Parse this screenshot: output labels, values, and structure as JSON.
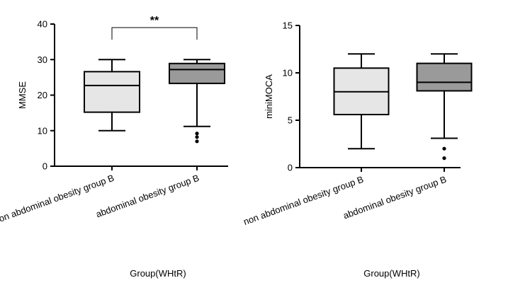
{
  "chart_data": [
    {
      "type": "box",
      "ylabel": "MMSE",
      "xlabel": "Group(WHtR)",
      "ylim": [
        0,
        40
      ],
      "yticks": [
        0,
        10,
        20,
        30,
        40
      ],
      "categories": [
        "non abdominal obesity group B",
        "abdominal obesity group B"
      ],
      "boxes": [
        {
          "min": 10,
          "q1": 15.2,
          "median": 22.7,
          "q3": 26.6,
          "max": 30,
          "outliers": [],
          "color": "#e6e6e6"
        },
        {
          "min": 11.2,
          "q1": 23.3,
          "median": 27.2,
          "q3": 28.9,
          "max": 30,
          "outliers": [
            9.2,
            8.2,
            7.0
          ],
          "color": "#9a9a9a"
        }
      ],
      "annotation": {
        "text": "**",
        "between": [
          0,
          1
        ],
        "y": 39
      }
    },
    {
      "type": "box",
      "ylabel": "miniMOCA",
      "xlabel": "Group(WHtR)",
      "ylim": [
        0,
        15
      ],
      "yticks": [
        0,
        5,
        10,
        15
      ],
      "categories": [
        "non abdominal obesity group B",
        "abdominal obesity group B"
      ],
      "boxes": [
        {
          "min": 2,
          "q1": 5.6,
          "median": 8.0,
          "q3": 10.5,
          "max": 12,
          "outliers": [],
          "color": "#e6e6e6"
        },
        {
          "min": 3.1,
          "q1": 8.1,
          "median": 9.0,
          "q3": 11.0,
          "max": 12,
          "outliers": [
            2,
            1
          ],
          "color": "#9a9a9a"
        }
      ]
    }
  ]
}
